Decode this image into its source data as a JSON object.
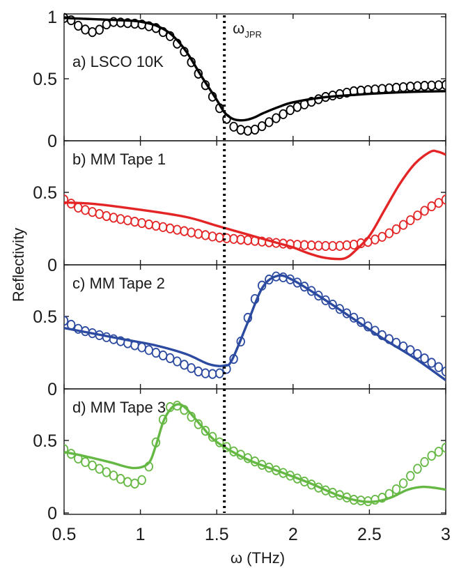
{
  "chart_data": {
    "type": "line",
    "xlabel": "ω (THz)",
    "ylabel": "Reflectivity",
    "xlim": [
      0.5,
      3.0
    ],
    "xticks": [
      "0.5",
      "1",
      "1.5",
      "2",
      "2.5",
      "3"
    ],
    "xtick_values": [
      0.5,
      1.0,
      1.5,
      2.0,
      2.5,
      3.0
    ],
    "vline": {
      "x": 1.55,
      "label": "ω",
      "label_sub": "JPR",
      "style": "dotted"
    },
    "panels": [
      {
        "label": "a) LSCO 10K",
        "color": "#000000",
        "ylim": [
          0,
          1
        ],
        "yticks": [
          "0",
          "0.5",
          "1"
        ],
        "ytick_values": [
          0,
          0.5,
          1
        ],
        "fit_x": [
          0.5,
          0.7,
          0.9,
          1.0,
          1.1,
          1.2,
          1.3,
          1.4,
          1.5,
          1.55,
          1.6,
          1.65,
          1.7,
          1.75,
          1.8,
          1.9,
          2.0,
          2.2,
          2.4,
          2.6,
          2.8,
          3.0
        ],
        "fit_y": [
          0.99,
          0.98,
          0.97,
          0.96,
          0.93,
          0.86,
          0.72,
          0.52,
          0.33,
          0.23,
          0.18,
          0.165,
          0.17,
          0.19,
          0.22,
          0.27,
          0.31,
          0.35,
          0.37,
          0.385,
          0.395,
          0.4
        ],
        "data_x": [
          0.5,
          0.55,
          0.6,
          0.65,
          0.7,
          0.75,
          0.8,
          0.9,
          1.0,
          1.1,
          1.2,
          1.3,
          1.4,
          1.5,
          1.55,
          1.6,
          1.65,
          1.7,
          1.75,
          1.8,
          1.9,
          2.0,
          2.2,
          2.4,
          2.6,
          2.8,
          3.0
        ],
        "data_y": [
          0.99,
          0.97,
          0.92,
          0.89,
          0.87,
          0.91,
          0.96,
          0.95,
          0.94,
          0.91,
          0.84,
          0.7,
          0.5,
          0.3,
          0.2,
          0.12,
          0.09,
          0.08,
          0.09,
          0.12,
          0.19,
          0.26,
          0.35,
          0.4,
          0.42,
          0.44,
          0.45
        ]
      },
      {
        "label": "b) MM Tape 1",
        "color": "#e42526",
        "ylim": [
          0,
          0.86
        ],
        "yticks": [
          "0",
          "0.5"
        ],
        "ytick_values": [
          0,
          0.5
        ],
        "fit_x": [
          0.5,
          0.7,
          1.0,
          1.3,
          1.5,
          1.7,
          1.9,
          2.0,
          2.1,
          2.2,
          2.3,
          2.35,
          2.4,
          2.5,
          2.6,
          2.7,
          2.8,
          2.9,
          2.95,
          3.0
        ],
        "fit_y": [
          0.43,
          0.42,
          0.38,
          0.33,
          0.27,
          0.21,
          0.15,
          0.12,
          0.08,
          0.05,
          0.04,
          0.05,
          0.09,
          0.2,
          0.38,
          0.56,
          0.7,
          0.78,
          0.78,
          0.76
        ],
        "data_x": [
          0.5,
          0.6,
          0.7,
          0.8,
          0.9,
          1.0,
          1.1,
          1.2,
          1.3,
          1.4,
          1.5,
          1.6,
          1.7,
          1.8,
          1.9,
          2.0,
          2.1,
          2.2,
          2.3,
          2.4,
          2.5,
          2.6,
          2.7,
          2.8,
          2.9,
          3.0
        ],
        "data_y": [
          0.45,
          0.39,
          0.36,
          0.33,
          0.31,
          0.29,
          0.27,
          0.25,
          0.23,
          0.21,
          0.19,
          0.18,
          0.17,
          0.16,
          0.15,
          0.14,
          0.135,
          0.13,
          0.13,
          0.14,
          0.16,
          0.2,
          0.26,
          0.33,
          0.4,
          0.45
        ]
      },
      {
        "label": "c) MM Tape 2",
        "color": "#2b4aa0",
        "ylim": [
          0,
          0.86
        ],
        "yticks": [
          "0",
          "0.5"
        ],
        "ytick_values": [
          0,
          0.5
        ],
        "fit_x": [
          0.5,
          0.7,
          0.9,
          1.1,
          1.3,
          1.45,
          1.55,
          1.6,
          1.7,
          1.8,
          1.9,
          2.0,
          2.2,
          2.4,
          2.6,
          2.8,
          3.0
        ],
        "fit_y": [
          0.42,
          0.38,
          0.34,
          0.3,
          0.24,
          0.17,
          0.16,
          0.2,
          0.45,
          0.7,
          0.78,
          0.75,
          0.62,
          0.48,
          0.34,
          0.21,
          0.06
        ],
        "data_x": [
          0.5,
          0.6,
          0.7,
          0.8,
          0.9,
          1.0,
          1.1,
          1.2,
          1.3,
          1.4,
          1.5,
          1.55,
          1.6,
          1.65,
          1.7,
          1.75,
          1.8,
          1.85,
          1.9,
          2.0,
          2.1,
          2.2,
          2.4,
          2.6,
          2.8,
          3.0
        ],
        "data_y": [
          0.47,
          0.41,
          0.38,
          0.35,
          0.32,
          0.29,
          0.25,
          0.21,
          0.16,
          0.11,
          0.1,
          0.12,
          0.18,
          0.3,
          0.48,
          0.62,
          0.72,
          0.76,
          0.78,
          0.75,
          0.69,
          0.62,
          0.49,
          0.36,
          0.25,
          0.12
        ]
      },
      {
        "label": "d) MM Tape 3",
        "color": "#65b843",
        "ylim": [
          0,
          0.86
        ],
        "yticks": [
          "0",
          "0.5"
        ],
        "ytick_values": [
          0,
          0.5
        ],
        "fit_x": [
          0.5,
          0.6,
          0.8,
          0.95,
          1.05,
          1.1,
          1.15,
          1.2,
          1.25,
          1.3,
          1.4,
          1.5,
          1.7,
          1.9,
          2.1,
          2.3,
          2.45,
          2.55,
          2.65,
          2.75,
          2.85,
          2.95,
          3.0
        ],
        "fit_y": [
          0.42,
          0.4,
          0.35,
          0.31,
          0.34,
          0.46,
          0.63,
          0.72,
          0.75,
          0.72,
          0.6,
          0.49,
          0.37,
          0.29,
          0.21,
          0.12,
          0.08,
          0.08,
          0.11,
          0.16,
          0.18,
          0.17,
          0.16
        ],
        "data_x": [
          0.5,
          0.6,
          0.7,
          0.8,
          0.9,
          0.95,
          1.0,
          1.05,
          1.1,
          1.15,
          1.2,
          1.25,
          1.3,
          1.4,
          1.5,
          1.6,
          1.8,
          2.0,
          2.2,
          2.4,
          2.5,
          2.6,
          2.7,
          2.8,
          2.9,
          3.0
        ],
        "data_y": [
          0.44,
          0.37,
          0.32,
          0.27,
          0.22,
          0.2,
          0.21,
          0.3,
          0.48,
          0.65,
          0.74,
          0.74,
          0.7,
          0.59,
          0.5,
          0.43,
          0.33,
          0.25,
          0.16,
          0.09,
          0.08,
          0.11,
          0.18,
          0.29,
          0.39,
          0.45
        ]
      }
    ]
  }
}
